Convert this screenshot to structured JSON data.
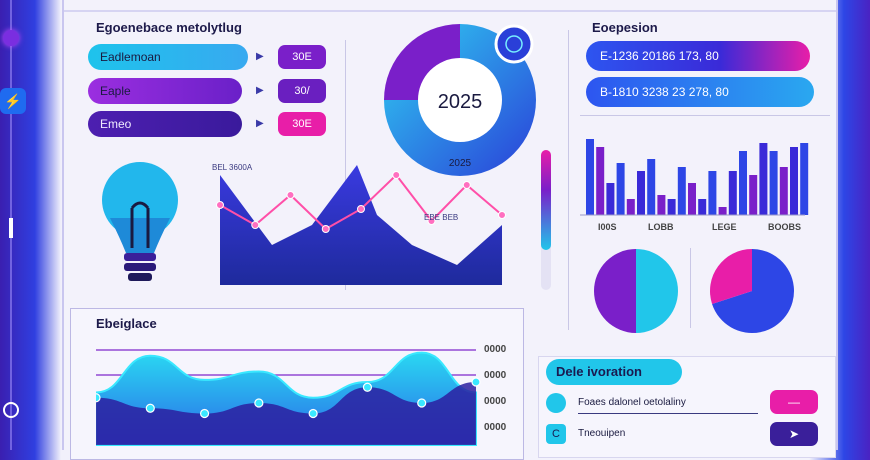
{
  "colors": {
    "cyan": "#21c6ea",
    "purple": "#7a1fc9",
    "blue": "#2d46e6",
    "magenta": "#e81ea8",
    "navy": "#231c7a"
  },
  "header": {
    "left_title": "Egoenebace metolytlug",
    "right_title": "Eoepesion"
  },
  "left_pills": [
    {
      "label": "Eadlemoan",
      "value": "30E",
      "color": "cyan",
      "value_color": "purple"
    },
    {
      "label": "Eaple",
      "value": "30/",
      "color": "purple",
      "value_color": "purple"
    },
    {
      "label": "Emeo",
      "value": "30E",
      "color": "navy",
      "value_color": "magenta"
    }
  ],
  "donut": {
    "center_label": "2025",
    "caption": "2025",
    "icon": "globe-icon",
    "segments": [
      {
        "value": 75,
        "color": "blue"
      },
      {
        "value": 25,
        "color": "purple"
      }
    ]
  },
  "right_pills": [
    {
      "text": "E-1236   20186   173, 80"
    },
    {
      "text": "B-1810    3238   23  278, 80"
    }
  ],
  "area_chart": {
    "label_a": "BEL 3600A",
    "label_b": "EBE BEB"
  },
  "chart_data": [
    {
      "type": "line",
      "x": [
        1,
        2,
        3,
        4,
        5,
        6,
        7,
        8,
        9
      ],
      "values": [
        40,
        30,
        45,
        28,
        38,
        55,
        32,
        50,
        35
      ]
    },
    {
      "type": "bar",
      "categories": [
        "a",
        "b",
        "c",
        "d",
        "e",
        "f",
        "g",
        "h",
        "i",
        "j",
        "k",
        "l",
        "m",
        "n",
        "o",
        "p",
        "q",
        "r",
        "s",
        "t",
        "u",
        "v"
      ],
      "values": [
        95,
        85,
        40,
        65,
        20,
        55,
        70,
        25,
        20,
        60,
        40,
        20,
        55,
        10,
        55,
        80,
        50,
        90,
        80,
        60,
        85,
        90
      ],
      "tick_labels": [
        "I00S",
        "LOBB",
        "LEGE",
        "BOOBS"
      ]
    },
    {
      "type": "pie",
      "values": [
        50,
        50
      ]
    },
    {
      "type": "pie",
      "values": [
        70,
        30
      ]
    },
    {
      "type": "area",
      "x": [
        1,
        2,
        3,
        4,
        5,
        6,
        7,
        8
      ],
      "series": [
        {
          "values": [
            50,
            85,
            62,
            70,
            45,
            60,
            88,
            50
          ]
        },
        {
          "values": [
            45,
            35,
            30,
            40,
            30,
            55,
            40,
            60
          ]
        }
      ],
      "yticks": [
        "0000",
        "0000",
        "0000",
        "0000"
      ]
    }
  ],
  "bottom_left": {
    "title": "Ebeiglace"
  },
  "bottom_right": {
    "title": "Dele ivoration",
    "items": [
      {
        "label": "Foaes dalonel oetolaliny",
        "glyph": "—"
      },
      {
        "label": "Tneouipen",
        "glyph": "➤"
      }
    ],
    "icons": [
      "circle-icon",
      "c-icon"
    ]
  },
  "rail": {
    "flash_glyph": "⚡"
  }
}
